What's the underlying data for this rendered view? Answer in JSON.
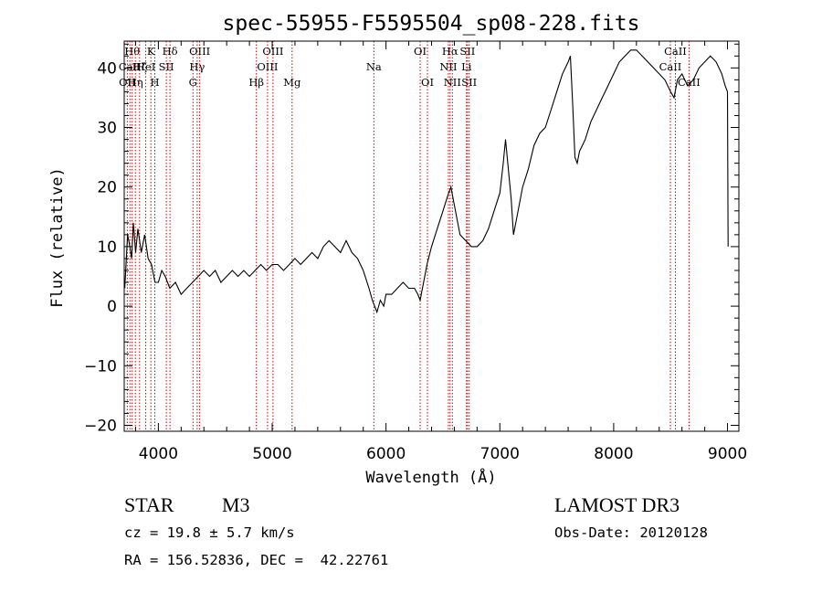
{
  "chart_data": {
    "type": "line",
    "title": "spec-55955-F5595504_sp08-228.fits",
    "xlabel": "Wavelength (Å)",
    "ylabel": "Flux (relative)",
    "xlim": [
      3700,
      9100
    ],
    "ylim": [
      -21,
      44.5
    ],
    "x_ticks": [
      4000,
      5000,
      6000,
      7000,
      8000,
      9000
    ],
    "y_ticks": [
      -20,
      -10,
      0,
      10,
      20,
      30,
      40
    ],
    "y_tick_labels": [
      "−20",
      "−10",
      "0",
      "10",
      "20",
      "30",
      "40"
    ],
    "grid": false,
    "spectral_lines": [
      {
        "x": 3727,
        "label": "OII",
        "row": 3
      },
      {
        "x": 3750,
        "label": "CaII",
        "row": 2
      },
      {
        "x": 3770,
        "label": "Hθ",
        "row": 1
      },
      {
        "x": 3798,
        "label": "Hη",
        "row": 3
      },
      {
        "x": 3835,
        "label": "Hζ",
        "row": 2
      },
      {
        "x": 3889,
        "label": "HeI",
        "row": 2
      },
      {
        "x": 3934,
        "label": "K",
        "row": 1
      },
      {
        "x": 3969,
        "label": "H",
        "row": 3
      },
      {
        "x": 4070,
        "label": "SII",
        "row": 2
      },
      {
        "x": 4102,
        "label": "Hδ",
        "row": 1
      },
      {
        "x": 4304,
        "label": "G",
        "row": 3
      },
      {
        "x": 4341,
        "label": "Hγ",
        "row": 2
      },
      {
        "x": 4363,
        "label": "OIII",
        "row": 1
      },
      {
        "x": 4861,
        "label": "Hβ",
        "row": 3
      },
      {
        "x": 4959,
        "label": "OIII",
        "row": 2
      },
      {
        "x": 5007,
        "label": "OIII",
        "row": 1
      },
      {
        "x": 5175,
        "label": "Mg",
        "row": 3
      },
      {
        "x": 5893,
        "label": "Na",
        "row": 2
      },
      {
        "x": 6300,
        "label": "OI",
        "row": 1
      },
      {
        "x": 6364,
        "label": "OI",
        "row": 3
      },
      {
        "x": 6548,
        "label": "NII",
        "row": 2
      },
      {
        "x": 6563,
        "label": "Hα",
        "row": 1
      },
      {
        "x": 6583,
        "label": "NII",
        "row": 3
      },
      {
        "x": 6707,
        "label": "Li",
        "row": 2
      },
      {
        "x": 6716,
        "label": "SII",
        "row": 1
      },
      {
        "x": 6731,
        "label": "SII",
        "row": 3
      },
      {
        "x": 8498,
        "label": "CaII",
        "row": 2
      },
      {
        "x": 8542,
        "label": "CaII",
        "row": 1
      },
      {
        "x": 8662,
        "label": "CaII",
        "row": 3
      }
    ],
    "series": [
      {
        "points": [
          [
            3705,
            3
          ],
          [
            3730,
            12
          ],
          [
            3750,
            10
          ],
          [
            3765,
            8
          ],
          [
            3780,
            14
          ],
          [
            3800,
            9
          ],
          [
            3820,
            13
          ],
          [
            3850,
            9
          ],
          [
            3880,
            12
          ],
          [
            3910,
            8
          ],
          [
            3940,
            7
          ],
          [
            3970,
            4
          ],
          [
            4000,
            4
          ],
          [
            4030,
            6
          ],
          [
            4060,
            5
          ],
          [
            4100,
            3
          ],
          [
            4150,
            4
          ],
          [
            4200,
            2
          ],
          [
            4250,
            3
          ],
          [
            4300,
            4
          ],
          [
            4350,
            5
          ],
          [
            4400,
            6
          ],
          [
            4450,
            5
          ],
          [
            4500,
            6
          ],
          [
            4550,
            4
          ],
          [
            4600,
            5
          ],
          [
            4650,
            6
          ],
          [
            4700,
            5
          ],
          [
            4750,
            6
          ],
          [
            4800,
            5
          ],
          [
            4850,
            6
          ],
          [
            4900,
            7
          ],
          [
            4950,
            6
          ],
          [
            5000,
            7
          ],
          [
            5050,
            7
          ],
          [
            5100,
            6
          ],
          [
            5150,
            7
          ],
          [
            5200,
            8
          ],
          [
            5250,
            7
          ],
          [
            5300,
            8
          ],
          [
            5350,
            9
          ],
          [
            5400,
            8
          ],
          [
            5450,
            10
          ],
          [
            5500,
            11
          ],
          [
            5550,
            10
          ],
          [
            5600,
            9
          ],
          [
            5650,
            11
          ],
          [
            5700,
            9
          ],
          [
            5750,
            8
          ],
          [
            5800,
            6
          ],
          [
            5850,
            3
          ],
          [
            5880,
            1
          ],
          [
            5900,
            0
          ],
          [
            5920,
            -1
          ],
          [
            5950,
            1
          ],
          [
            5980,
            0
          ],
          [
            6000,
            2
          ],
          [
            6050,
            2
          ],
          [
            6100,
            3
          ],
          [
            6150,
            4
          ],
          [
            6200,
            3
          ],
          [
            6250,
            3
          ],
          [
            6280,
            2
          ],
          [
            6300,
            1
          ],
          [
            6330,
            4
          ],
          [
            6360,
            7
          ],
          [
            6400,
            10
          ],
          [
            6450,
            13
          ],
          [
            6500,
            16
          ],
          [
            6550,
            19
          ],
          [
            6570,
            20
          ],
          [
            6590,
            18
          ],
          [
            6620,
            15
          ],
          [
            6650,
            12
          ],
          [
            6700,
            11
          ],
          [
            6750,
            10
          ],
          [
            6800,
            10
          ],
          [
            6850,
            11
          ],
          [
            6900,
            13
          ],
          [
            6950,
            16
          ],
          [
            7000,
            19
          ],
          [
            7030,
            24
          ],
          [
            7050,
            28
          ],
          [
            7080,
            22
          ],
          [
            7100,
            18
          ],
          [
            7120,
            12
          ],
          [
            7150,
            15
          ],
          [
            7200,
            20
          ],
          [
            7250,
            23
          ],
          [
            7300,
            27
          ],
          [
            7350,
            29
          ],
          [
            7400,
            30
          ],
          [
            7450,
            33
          ],
          [
            7500,
            36
          ],
          [
            7550,
            39
          ],
          [
            7600,
            41
          ],
          [
            7620,
            42
          ],
          [
            7640,
            34
          ],
          [
            7660,
            25
          ],
          [
            7680,
            24
          ],
          [
            7700,
            26
          ],
          [
            7750,
            28
          ],
          [
            7800,
            31
          ],
          [
            7850,
            33
          ],
          [
            7900,
            35
          ],
          [
            7950,
            37
          ],
          [
            8000,
            39
          ],
          [
            8050,
            41
          ],
          [
            8100,
            42
          ],
          [
            8150,
            43
          ],
          [
            8200,
            43
          ],
          [
            8250,
            42
          ],
          [
            8300,
            41
          ],
          [
            8350,
            40
          ],
          [
            8400,
            39
          ],
          [
            8450,
            38
          ],
          [
            8500,
            36
          ],
          [
            8530,
            35
          ],
          [
            8560,
            38
          ],
          [
            8600,
            39
          ],
          [
            8650,
            37
          ],
          [
            8700,
            38
          ],
          [
            8750,
            40
          ],
          [
            8800,
            41
          ],
          [
            8850,
            42
          ],
          [
            8900,
            41
          ],
          [
            8950,
            39
          ],
          [
            8980,
            37
          ],
          [
            9000,
            36
          ],
          [
            9005,
            10
          ]
        ]
      }
    ]
  },
  "info": {
    "object_class": "STAR",
    "subclass": "M3",
    "survey": "LAMOST DR3",
    "redshift": "cz = 19.8 ± 5.7 km/s",
    "obs_date": "Obs-Date: 20120128",
    "coords": "RA = 156.52836, DEC =  42.22761"
  }
}
